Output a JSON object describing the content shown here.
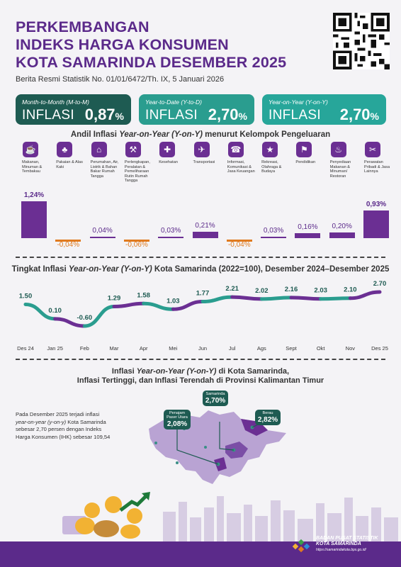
{
  "header": {
    "title_lines": [
      "PERKEMBANGAN",
      "INDEKS HARGA KONSUMEN",
      "KOTA SAMARINDA DESEMBER 2025"
    ],
    "release": "Berita Resmi Statistik No. 01/01/6472/Th. IX, 5 Januari 2026"
  },
  "cards": [
    {
      "caption": "Month-to-Month (M-to-M)",
      "label": "INFLASI",
      "value": "0,87",
      "unit": "%"
    },
    {
      "caption": "Year-to-Date (Y-to-D)",
      "label": "INFLASI",
      "value": "2,70",
      "unit": "%"
    },
    {
      "caption": "Year-on-Year (Y-on-Y)",
      "label": "INFLASI",
      "value": "2,70",
      "unit": "%"
    }
  ],
  "section1": {
    "pre": "Andil Inflasi ",
    "italic": "Year-on-Year (Y-on-Y)",
    "post": " menurut Kelompok Pengeluaran"
  },
  "section2": {
    "pre": "Tingkat Inflasi ",
    "italic": "Year-on-Year (Y-on-Y)",
    "post": " Kota Samarinda (2022=100), Desember 2024–Desember 2025"
  },
  "section3": {
    "line1_pre": "Inflasi ",
    "line1_italic": "Year-on-Year (Y-on-Y)",
    "line1_post": " di Kota Samarinda,",
    "line2": "Inflasi Tertinggi, dan Inflasi Terendah di Provinsi Kalimantan Timur"
  },
  "chart_data": [
    {
      "type": "bar",
      "categories": [
        "Makanan, Minuman & Tembakau",
        "Pakaian & Alas Kaki",
        "Perumahan, Air, Listrik & Bahan Bakar Rumah Tangga",
        "Perlengkapan, Peralatan & Pemeliharaan Rutin Rumah Tangga",
        "Kesehatan",
        "Transportasi",
        "Informasi, Komunikasi & Jasa Keuangan",
        "Rekreasi, Olahraga & Budaya",
        "Pendidikan",
        "Penyediaan Makanan & Minuman/ Restoran",
        "Perawatan Pribadi & Jasa Lainnya"
      ],
      "values": [
        1.24,
        -0.04,
        0.04,
        -0.06,
        0.03,
        0.21,
        -0.04,
        0.03,
        0.16,
        0.2,
        0.93
      ],
      "labels": [
        "1,24%",
        "-0,04%",
        "0,04%",
        "-0,06%",
        "0,03%",
        "0,21%",
        "-0,04%",
        "0,03%",
        "0,16%",
        "0,20%",
        "0,93%"
      ],
      "icons": [
        "food-icon",
        "dress-icon",
        "house-icon",
        "tools-icon",
        "medkit-icon",
        "plane-icon",
        "phone-icon",
        "runner-icon",
        "graduation-cap-icon",
        "restaurant-icon",
        "scissors-icon"
      ],
      "colors": {
        "positive": "#6b2f93",
        "negative": "#e07a1f"
      }
    },
    {
      "type": "line",
      "x": [
        "Des 24",
        "Jan 25",
        "Feb",
        "Mar",
        "Apr",
        "Mei",
        "Jun",
        "Jul",
        "Ags",
        "Sept",
        "Okt",
        "Nov",
        "Des 25"
      ],
      "values": [
        1.5,
        0.1,
        -0.6,
        1.29,
        1.58,
        1.03,
        1.77,
        2.21,
        2.02,
        2.16,
        2.03,
        2.1,
        2.7
      ],
      "labels": [
        "1.50",
        "0.10",
        "-0.60",
        "1.29",
        "1.58",
        "1.03",
        "1.77",
        "2.21",
        "2.02",
        "2.16",
        "2.03",
        "2.10",
        "2.70"
      ],
      "colors": {
        "line_a": "#2a9d8f",
        "line_b": "#6b2f93"
      }
    }
  ],
  "map": {
    "note_lines": [
      {
        "text": "Pada Desember 2025 terjadi inflasi"
      },
      {
        "text": "year-on-year (y-on-y)",
        "italic": true,
        "suffix": " Kota Samarinda"
      },
      {
        "text": "sebesar 2,70 persen dengan Indeks"
      },
      {
        "text": "Harga Konsumen (IHK) sebesar 109,54"
      }
    ],
    "pins": [
      {
        "name": "Penajam Paser Utara",
        "value": "2,08%"
      },
      {
        "name": "Samarinda",
        "value": "2,70%"
      },
      {
        "name": "Berau",
        "value": "2,82%"
      }
    ]
  },
  "footer": {
    "org1": "BADAN PUSAT STATISTIK",
    "org2": "KOTA SAMARINDA",
    "url": "https://samarindakota.bps.go.id/"
  }
}
